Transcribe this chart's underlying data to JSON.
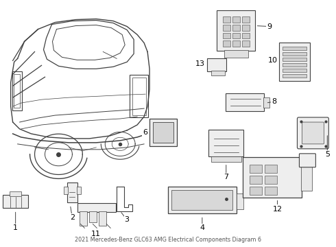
{
  "title": "2021 Mercedes-Benz GLC63 AMG Electrical Components Diagram 6",
  "bg_color": "#ffffff",
  "line_color": "#404040",
  "text_color": "#000000",
  "fig_width": 4.9,
  "fig_height": 3.6,
  "dpi": 100
}
